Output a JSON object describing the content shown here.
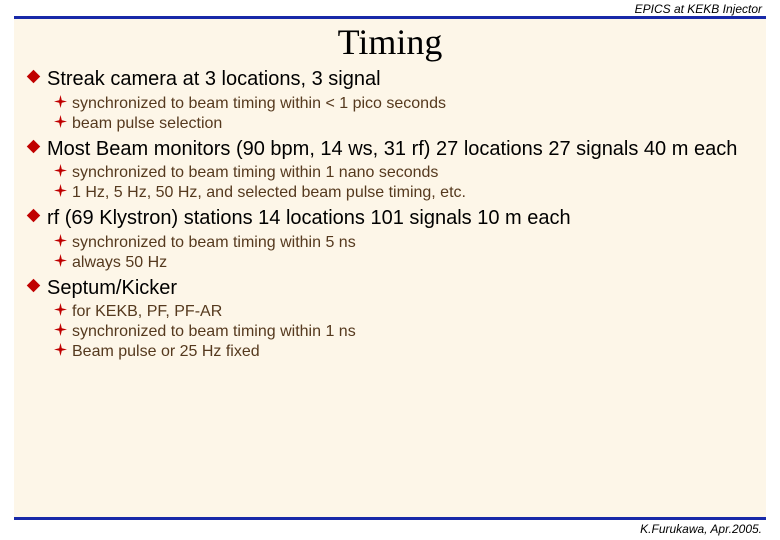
{
  "header": {
    "text": "EPICS at KEKB Injector",
    "fontsize": "12px",
    "color": "#000000"
  },
  "rules": {
    "color": "#1829a8",
    "thickness": "3px"
  },
  "background": "#fdf6e8",
  "title": {
    "text": "Timing",
    "fontsize": "36px",
    "color": "#000000"
  },
  "bullets": {
    "level1": {
      "shape": "diamond",
      "fill": "#c00000",
      "size": 15,
      "textcolor": "#000000",
      "fontsize": "20px"
    },
    "level2": {
      "shape": "four-point-star",
      "fill": "#c00000",
      "size": 13,
      "textcolor": "#55391e",
      "fontsize": "16px"
    }
  },
  "items": [
    {
      "text": "Streak camera at 3 locations, 3 signal",
      "sub": [
        {
          "text": "synchronized to beam timing within < 1 pico seconds"
        },
        {
          "text": "beam pulse selection"
        }
      ]
    },
    {
      "text": "Most Beam monitors (90 bpm, 14 ws, 31 rf) 27 locations 27 signals 40 m each",
      "sub": [
        {
          "text": "synchronized to beam timing within 1 nano seconds"
        },
        {
          "text": "1 Hz, 5 Hz, 50 Hz, and selected beam pulse timing, etc."
        }
      ]
    },
    {
      "text": "rf (69 Klystron) stations 14 locations 101 signals 10 m each",
      "sub": [
        {
          "text": "synchronized to beam timing within 5 ns"
        },
        {
          "text": "always 50 Hz"
        }
      ]
    },
    {
      "text": "Septum/Kicker",
      "sub": [
        {
          "text": "for KEKB, PF, PF-AR"
        },
        {
          "text": "synchronized to beam timing within 1 ns"
        },
        {
          "text": "Beam pulse or 25 Hz fixed"
        }
      ]
    }
  ],
  "footer": {
    "text": "K.Furukawa, Apr.2005.",
    "fontsize": "12px",
    "color": "#000000"
  }
}
